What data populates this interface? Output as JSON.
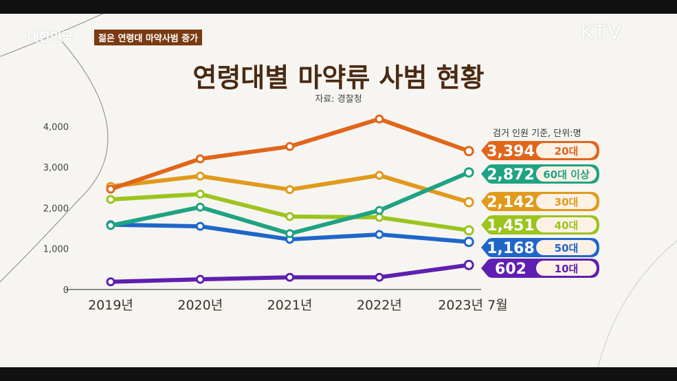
{
  "header": {
    "tag": "젊은 연령대 마약사범 증가",
    "channel": "KTV",
    "program_logo": "대한민국"
  },
  "chart_data": {
    "type": "line",
    "title": "연령대별 마약류 사범 현황",
    "subtitle": "자료: 경찰청",
    "unit_note": "검거 인원 기준, 단위:명",
    "categories": [
      "2019년",
      "2020년",
      "2021년",
      "2022년",
      "2023년 7월"
    ],
    "y_ticks": [
      "0",
      "1,000",
      "2,000",
      "3,000",
      "4,000"
    ],
    "ylim": [
      0,
      4500
    ],
    "grid": false,
    "legend": "right",
    "series": [
      {
        "name": "20대",
        "color": "#e0661a",
        "values": [
          2462,
          3204,
          3507,
          4182,
          3394
        ],
        "label": "3,394"
      },
      {
        "name": "60대 이상",
        "color": "#1fa382",
        "values": [
          1570,
          2020,
          1370,
          1940,
          2872
        ],
        "label": "2,872"
      },
      {
        "name": "30대",
        "color": "#e09a1c",
        "values": [
          2530,
          2780,
          2450,
          2800,
          2142
        ],
        "label": "2,142"
      },
      {
        "name": "40대",
        "color": "#9cc41f",
        "values": [
          2210,
          2340,
          1790,
          1770,
          1451
        ],
        "label": "1,451"
      },
      {
        "name": "50대",
        "color": "#1f66c9",
        "values": [
          1590,
          1550,
          1230,
          1350,
          1168
        ],
        "label": "1,168"
      },
      {
        "name": "10대",
        "color": "#5f1fb0",
        "values": [
          190,
          250,
          300,
          300,
          602
        ],
        "label": "602"
      }
    ]
  }
}
